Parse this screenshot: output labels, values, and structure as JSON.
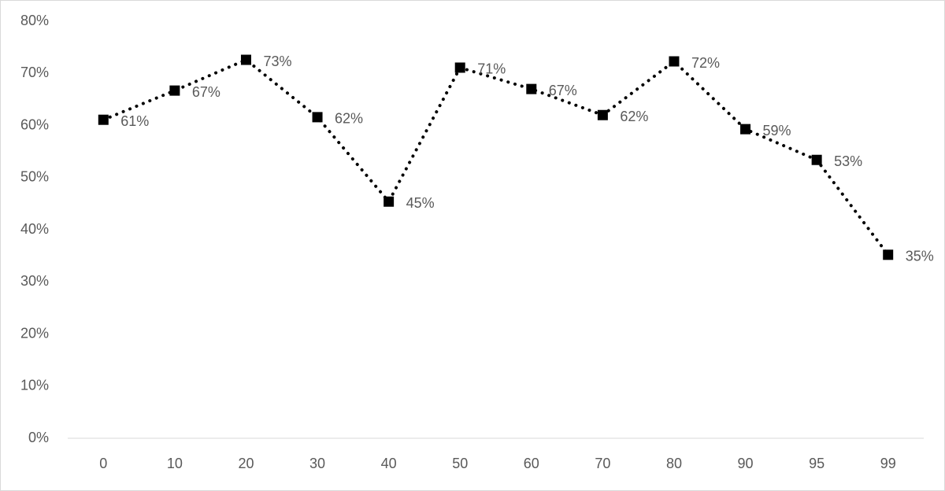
{
  "chart_data": {
    "type": "line",
    "categories": [
      "0",
      "10",
      "20",
      "30",
      "40",
      "50",
      "60",
      "70",
      "80",
      "90",
      "95",
      "99"
    ],
    "values": [
      61.1,
      66.7,
      72.6,
      61.6,
      45.4,
      71.1,
      67.0,
      62.0,
      72.3,
      59.3,
      53.4,
      35.2
    ],
    "value_labels": [
      "61%",
      "67%",
      "73%",
      "62%",
      "45%",
      "71%",
      "67%",
      "62%",
      "72%",
      "59%",
      "53%",
      "35%"
    ],
    "color": "#000000",
    "line_style": "dotted",
    "marker": "square",
    "ylim": [
      0,
      80
    ],
    "yticks": [
      {
        "value": 0,
        "label": "0%"
      },
      {
        "value": 10,
        "label": "10%"
      },
      {
        "value": 20,
        "label": "20%"
      },
      {
        "value": 30,
        "label": "30%"
      },
      {
        "value": 40,
        "label": "40%"
      },
      {
        "value": 50,
        "label": "50%"
      },
      {
        "value": 60,
        "label": "60%"
      },
      {
        "value": 70,
        "label": "70%"
      },
      {
        "value": 80,
        "label": "80%"
      }
    ],
    "grid": false
  }
}
